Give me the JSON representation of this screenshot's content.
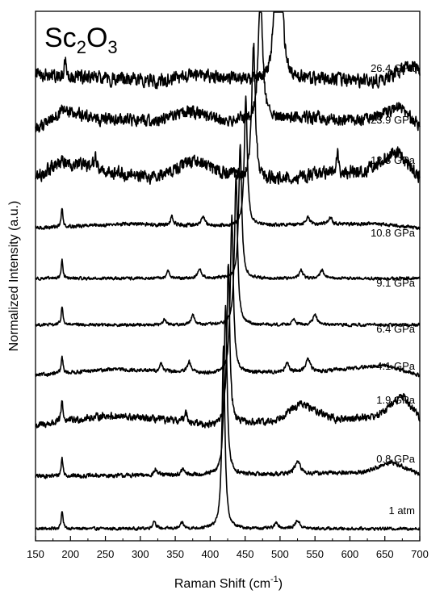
{
  "chart_data": {
    "type": "line",
    "title_base": "Sc",
    "title_sub1": "2",
    "title_mid": "O",
    "title_sub2": "3",
    "xlabel": "Raman Shift (cm",
    "xlabel_sup": "-1",
    "xlabel_end": ")",
    "ylabel": "Normalized Intensity (a.u.)",
    "xlim": [
      150,
      700
    ],
    "xticks": [
      "150",
      "200",
      "250",
      "300",
      "350",
      "400",
      "450",
      "500",
      "550",
      "600",
      "650",
      "700"
    ],
    "grid": false,
    "series": [
      {
        "label": "1 atm",
        "offset": 0.0,
        "noise": 0.05,
        "baseline": [
          [
            150,
            0.0
          ],
          [
            700,
            0.0
          ]
        ],
        "peaks": [
          [
            188,
            0.45,
            1.5
          ],
          [
            320,
            0.2,
            2.5
          ],
          [
            360,
            0.15,
            2.5
          ],
          [
            419,
            4.5,
            2.5
          ],
          [
            495,
            0.15,
            3
          ],
          [
            525,
            0.2,
            4
          ]
        ]
      },
      {
        "label": "0.8 GPa",
        "offset": 1.3,
        "noise": 0.07,
        "baseline": [
          [
            150,
            0.0
          ],
          [
            520,
            0.05
          ],
          [
            620,
            0.1
          ],
          [
            660,
            0.35
          ],
          [
            700,
            0.05
          ]
        ],
        "peaks": [
          [
            188,
            0.45,
            1.5
          ],
          [
            322,
            0.15,
            2.5
          ],
          [
            361,
            0.15,
            2.5
          ],
          [
            422,
            4.2,
            2.5
          ],
          [
            525,
            0.3,
            5
          ]
        ]
      },
      {
        "label": "1.9 GPa",
        "offset": 2.55,
        "noise": 0.12,
        "baseline": [
          [
            150,
            0.0
          ],
          [
            250,
            0.25
          ],
          [
            330,
            0.15
          ],
          [
            400,
            0.0
          ],
          [
            490,
            0.1
          ],
          [
            530,
            0.55
          ],
          [
            580,
            0.15
          ],
          [
            640,
            0.25
          ],
          [
            675,
            0.75
          ],
          [
            700,
            0.2
          ]
        ],
        "peaks": [
          [
            188,
            0.55,
            1.5
          ],
          [
            365,
            0.25,
            3
          ],
          [
            426,
            4.0,
            2.5
          ]
        ]
      },
      {
        "label": "4.1 GPa",
        "offset": 3.8,
        "noise": 0.06,
        "baseline": [
          [
            150,
            0.0
          ],
          [
            260,
            0.15
          ],
          [
            400,
            0.05
          ],
          [
            560,
            0.1
          ],
          [
            650,
            0.25
          ],
          [
            700,
            0.0
          ]
        ],
        "peaks": [
          [
            188,
            0.4,
            1.5
          ],
          [
            330,
            0.2,
            2.5
          ],
          [
            370,
            0.25,
            3
          ],
          [
            431,
            3.9,
            2.5
          ],
          [
            510,
            0.2,
            3
          ],
          [
            540,
            0.3,
            4
          ]
        ]
      },
      {
        "label": "6.4 GPa",
        "offset": 5.05,
        "noise": 0.05,
        "baseline": [
          [
            150,
            0.0
          ],
          [
            700,
            0.0
          ]
        ],
        "peaks": [
          [
            188,
            0.45,
            1.5
          ],
          [
            335,
            0.15,
            2.5
          ],
          [
            375,
            0.25,
            3
          ],
          [
            437,
            3.7,
            2.5
          ],
          [
            520,
            0.15,
            3
          ],
          [
            550,
            0.25,
            3.5
          ]
        ]
      },
      {
        "label": "9.1 GPa",
        "offset": 6.2,
        "noise": 0.05,
        "baseline": [
          [
            150,
            0.0
          ],
          [
            700,
            0.0
          ]
        ],
        "peaks": [
          [
            188,
            0.45,
            1.5
          ],
          [
            340,
            0.2,
            2.5
          ],
          [
            385,
            0.25,
            3
          ],
          [
            443,
            3.3,
            2.5
          ],
          [
            530,
            0.2,
            3
          ],
          [
            560,
            0.2,
            3.5
          ]
        ]
      },
      {
        "label": "10.8 GPa",
        "offset": 7.45,
        "noise": 0.06,
        "baseline": [
          [
            150,
            0.0
          ],
          [
            280,
            0.1
          ],
          [
            400,
            0.05
          ],
          [
            640,
            0.1
          ],
          [
            700,
            0.0
          ]
        ],
        "peaks": [
          [
            188,
            0.45,
            1.5
          ],
          [
            345,
            0.2,
            2.5
          ],
          [
            390,
            0.25,
            3
          ],
          [
            451,
            3.2,
            2.5
          ],
          [
            540,
            0.2,
            3
          ],
          [
            572,
            0.2,
            3
          ]
        ]
      },
      {
        "label": "13.8 GPa",
        "offset": 8.6,
        "noise": 0.22,
        "baseline": [
          [
            150,
            0.1
          ],
          [
            190,
            0.5
          ],
          [
            250,
            0.25
          ],
          [
            320,
            0.1
          ],
          [
            380,
            0.55
          ],
          [
            420,
            0.2
          ],
          [
            470,
            0.0
          ],
          [
            560,
            0.2
          ],
          [
            620,
            0.25
          ],
          [
            668,
            0.75
          ],
          [
            700,
            0.1
          ]
        ],
        "peaks": [
          [
            235,
            0.4,
            2
          ],
          [
            462,
            3.4,
            3
          ],
          [
            582,
            0.5,
            2
          ]
        ]
      },
      {
        "label": "23.9 GPa",
        "offset": 9.9,
        "noise": 0.2,
        "baseline": [
          [
            150,
            0.0
          ],
          [
            190,
            0.45
          ],
          [
            240,
            0.25
          ],
          [
            320,
            0.2
          ],
          [
            370,
            0.45
          ],
          [
            420,
            0.2
          ],
          [
            540,
            0.3
          ],
          [
            620,
            0.2
          ],
          [
            670,
            0.55
          ],
          [
            700,
            0.1
          ]
        ],
        "peaks": [
          [
            472,
            3.2,
            3.5
          ]
        ]
      },
      {
        "label": "26.4 GPa",
        "offset": 11.0,
        "noise": 0.22,
        "baseline": [
          [
            150,
            0.3
          ],
          [
            180,
            0.2
          ],
          [
            250,
            0.15
          ],
          [
            330,
            0.1
          ],
          [
            380,
            0.25
          ],
          [
            450,
            0.1
          ],
          [
            550,
            0.15
          ],
          [
            640,
            0.1
          ],
          [
            690,
            0.5
          ],
          [
            700,
            0.35
          ]
        ],
        "peaks": [
          [
            193,
            0.5,
            1.5
          ],
          [
            493,
            2.0,
            4
          ],
          [
            502,
            2.3,
            3.5
          ]
        ]
      }
    ]
  }
}
